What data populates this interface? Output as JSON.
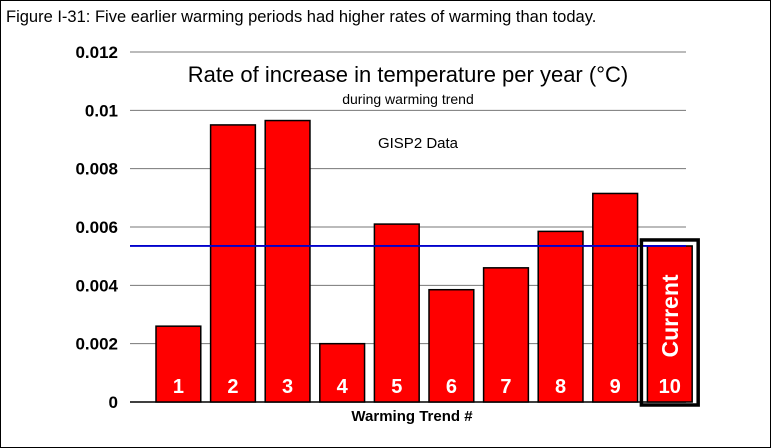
{
  "caption": "Figure I-31: Five earlier warming periods had higher rates of warming than today.",
  "colors": {
    "bar_fill": "#ff0000",
    "bar_stroke": "#000000",
    "reference_line": "#0000cc",
    "gridline": "#777777",
    "highlight_box": "#000000"
  },
  "chart_data": {
    "type": "bar",
    "title": "Rate of increase in temperature per year (°C)",
    "subtitle": "during warming trend",
    "annotation": "GISP2 Data",
    "xlabel": "Warming Trend #",
    "ylabel": "",
    "categories": [
      "1",
      "2",
      "3",
      "4",
      "5",
      "6",
      "7",
      "8",
      "9",
      "10"
    ],
    "values": [
      0.0026,
      0.0095,
      0.00965,
      0.002,
      0.0061,
      0.00385,
      0.0046,
      0.00585,
      0.00715,
      0.00535
    ],
    "ylim": [
      0,
      0.012
    ],
    "yticks": [
      "0",
      "0.002",
      "0.004",
      "0.006",
      "0.008",
      "0.01",
      "0.012"
    ],
    "reference_line_value": 0.00535,
    "highlight": {
      "category": "10",
      "label": "Current"
    },
    "grid": true
  }
}
